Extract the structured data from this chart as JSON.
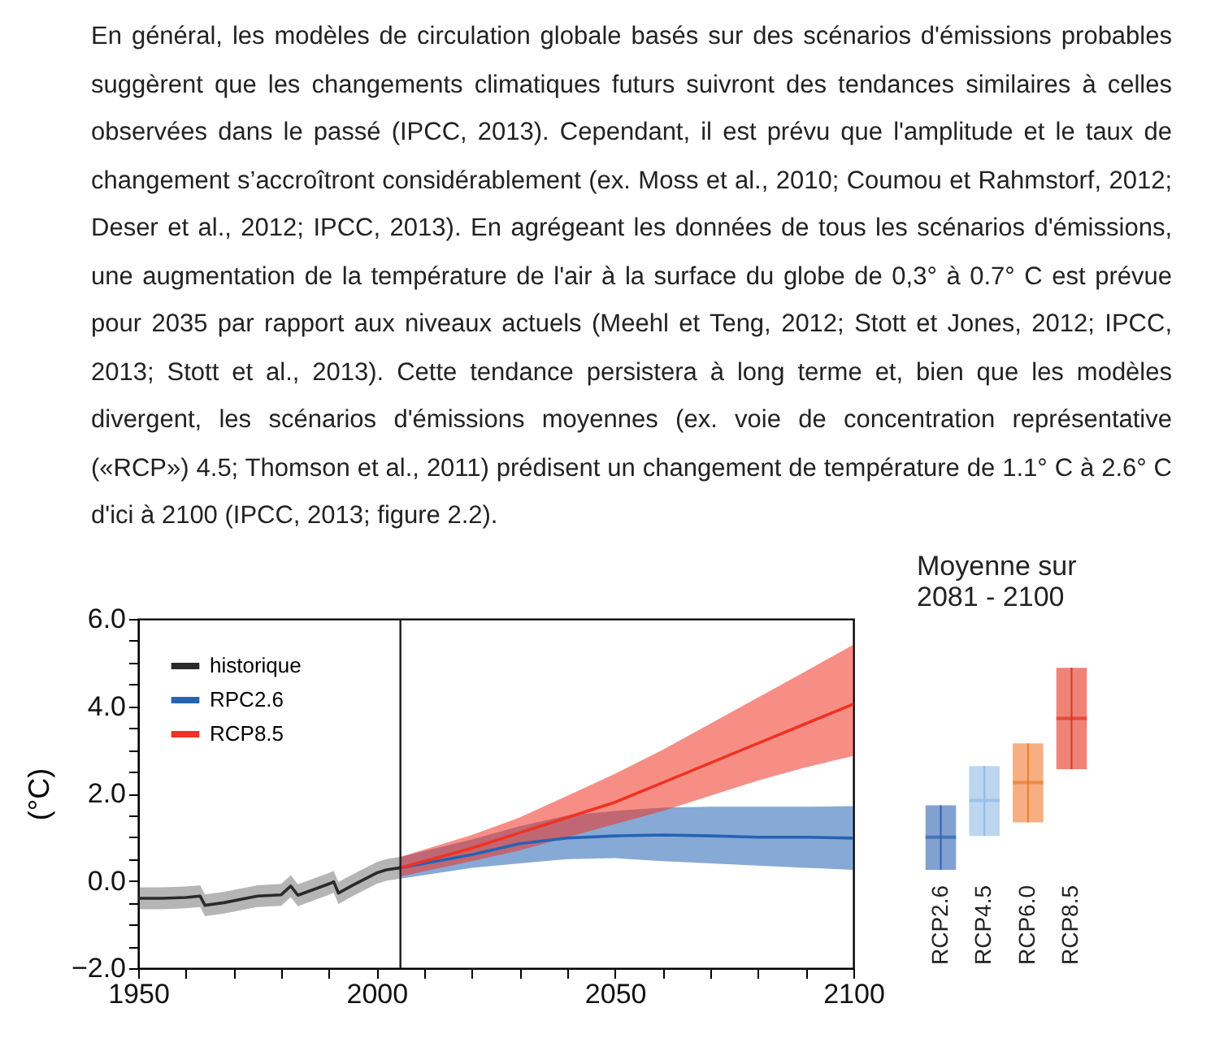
{
  "chart_data": [
    {
      "type": "line",
      "annotations": [
        "En général, les modèles de circulation globale basés sur des scénarios d'émissions probables suggèrent que les changements climatiques futurs suivront des tendances similaires à celles observées dans le passé (IPCC, 2013).  Cependant, il est prévu que l'amplitude et le taux de changement s’accroîtront considérablement (ex. Moss et al., 2010; Coumou et Rahmstorf, 2012; Deser et al., 2012; IPCC, 2013).  En agrégeant les données de tous les scénarios d'émissions, une augmentation de la température de l'air à la surface du globe de 0,3° à 0.7° C est prévue pour 2035 par rapport aux niveaux actuels (Meehl et Teng, 2012; Stott et Jones, 2012; IPCC, 2013; Stott et al., 2013).  Cette tendance persistera à long terme et, bien que les modèles divergent, les scénarios d'émissions moyennes (ex. voie de concentration représentative («RCP») 4.5; Thomson et al., 2011) prédisent un changement de température de 1.1° C à 2.6° C d'ici à 2100 (IPCC, 2013; figure 2.2)."
      ],
      "ylabel": "(°C)",
      "xlim": [
        1950,
        2100
      ],
      "xticks": [
        1950,
        {
          "value": 1960,
          "label": null
        },
        {
          "value": 1970,
          "label": null
        },
        {
          "value": 1980,
          "label": null
        },
        {
          "value": 1990,
          "label": null
        },
        2000,
        {
          "value": 2010,
          "label": null
        },
        {
          "value": 2020,
          "label": null
        },
        {
          "value": 2030,
          "label": null
        },
        {
          "value": 2040,
          "label": null
        },
        2050,
        {
          "value": 2060,
          "label": null
        },
        {
          "value": 2070,
          "label": null
        },
        {
          "value": 2080,
          "label": null
        },
        {
          "value": 2090,
          "label": null
        },
        2100
      ],
      "ylim": [
        -2,
        6
      ],
      "yticks": [
        {
          "value": -2,
          "label": "−2.0"
        },
        {
          "value": -1.5,
          "label": null
        },
        {
          "value": -1,
          "label": null
        },
        {
          "value": -0.5,
          "label": null
        },
        {
          "value": 0,
          "label": "0.0"
        },
        {
          "value": 0.5,
          "label": null
        },
        {
          "value": 1,
          "label": null
        },
        {
          "value": 1.5,
          "label": null
        },
        {
          "value": 2,
          "label": "2.0"
        },
        {
          "value": 2.5,
          "label": null
        },
        {
          "value": 3,
          "label": null
        },
        {
          "value": 3.5,
          "label": null
        },
        {
          "value": 4,
          "label": "4.0"
        },
        {
          "value": 4.5,
          "label": null
        },
        {
          "value": 5,
          "label": null
        },
        {
          "value": 5.5,
          "label": null
        },
        {
          "value": 6,
          "label": "6.0"
        }
      ],
      "legend": "top left",
      "line_style": "solid",
      "ref_lines": [
        {
          "axis": "x",
          "value": 2005,
          "color": "#1a1a1a"
        }
      ],
      "series": [
        {
          "name": "historique",
          "color": "#2a2a2a",
          "x": [
            1950,
            1955,
            1960,
            1963,
            1964,
            1968,
            1975,
            1980,
            1982,
            1983.5,
            1990,
            1991,
            1992,
            1995,
            2000,
            2002,
            2005
          ],
          "values": [
            -0.4,
            -0.4,
            -0.38,
            -0.35,
            -0.56,
            -0.5,
            -0.35,
            -0.32,
            -0.12,
            -0.33,
            -0.07,
            -0.02,
            -0.28,
            -0.1,
            0.18,
            0.25,
            0.3
          ],
          "lower": [
            -0.65,
            -0.65,
            -0.63,
            -0.6,
            -0.81,
            -0.75,
            -0.6,
            -0.57,
            -0.37,
            -0.58,
            -0.32,
            -0.27,
            -0.53,
            -0.35,
            -0.07,
            0,
            0.05
          ],
          "upper": [
            -0.15,
            -0.15,
            -0.13,
            -0.1,
            -0.31,
            -0.25,
            -0.1,
            -0.07,
            0.13,
            -0.08,
            0.18,
            0.23,
            -0.03,
            0.15,
            0.43,
            0.5,
            0.55
          ]
        },
        {
          "name": "RPC2.6",
          "color": "#2563b4",
          "x": [
            2005,
            2020,
            2030,
            2040,
            2050,
            2060,
            2070,
            2080,
            2090,
            2100
          ],
          "values": [
            0.3,
            0.6,
            0.85,
            0.98,
            1.03,
            1.05,
            1.03,
            1.0,
            1.0,
            0.98
          ],
          "lower": [
            0.05,
            0.3,
            0.4,
            0.5,
            0.52,
            0.45,
            0.4,
            0.35,
            0.3,
            0.25
          ],
          "upper": [
            0.55,
            0.95,
            1.25,
            1.5,
            1.6,
            1.68,
            1.7,
            1.7,
            1.7,
            1.71
          ]
        },
        {
          "name": "RCP8.5",
          "color": "#f03222",
          "x": [
            2005,
            2020,
            2030,
            2040,
            2050,
            2060,
            2070,
            2080,
            2090,
            2100
          ],
          "values": [
            0.3,
            0.75,
            1.1,
            1.45,
            1.8,
            2.25,
            2.7,
            3.15,
            3.6,
            4.05
          ],
          "lower": [
            0.1,
            0.45,
            0.7,
            1.0,
            1.3,
            1.6,
            1.95,
            2.3,
            2.6,
            2.86
          ],
          "upper": [
            0.55,
            1.05,
            1.45,
            1.95,
            2.45,
            3.0,
            3.6,
            4.2,
            4.8,
            5.41
          ]
        }
      ]
    },
    {
      "type": "box",
      "title": "Moyenne sur\n2081 - 2100",
      "categories": [
        "RCP2.6",
        "RCP4.5",
        "RCP6.0",
        "RCP8.5"
      ],
      "ylim": [
        -2,
        6
      ],
      "colors": [
        "#2f63b3",
        "#8fbbe6",
        "#f07a2e",
        "#e4301e"
      ],
      "boxes": [
        {
          "low": 0.25,
          "q1": 0.25,
          "median": 1.0,
          "q3": 1.73,
          "high": 1.73
        },
        {
          "low": 1.03,
          "q1": 1.03,
          "median": 1.84,
          "q3": 2.63,
          "high": 2.63
        },
        {
          "low": 1.34,
          "q1": 1.34,
          "median": 2.25,
          "q3": 3.15,
          "high": 3.15
        },
        {
          "low": 2.56,
          "q1": 2.56,
          "median": 3.72,
          "q3": 4.88,
          "high": 4.88
        }
      ]
    }
  ]
}
